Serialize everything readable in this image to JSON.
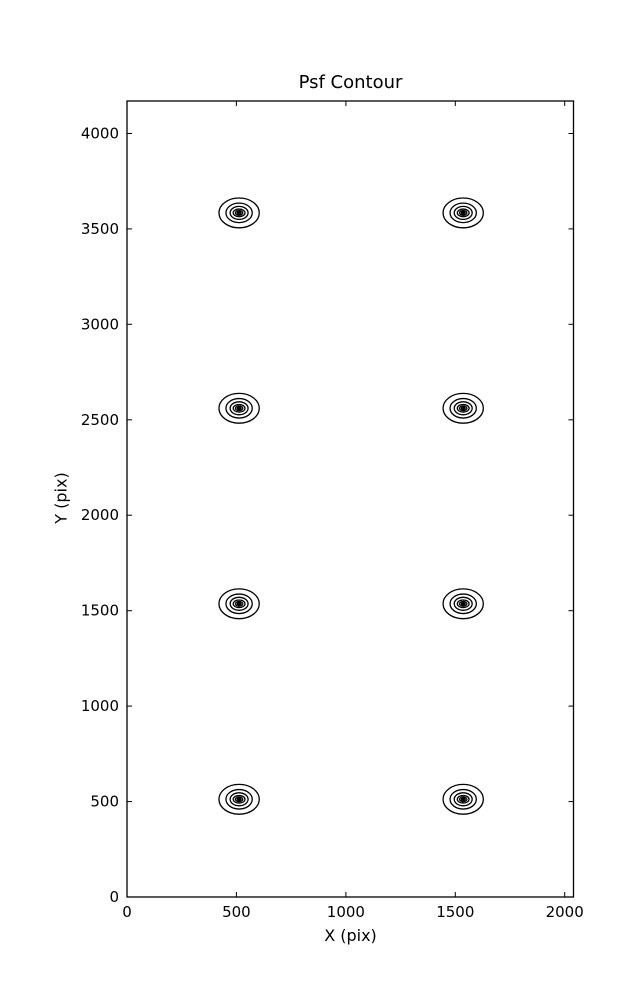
{
  "figure": {
    "background_color": "#ffffff",
    "line_color": "#000000"
  },
  "chart_data": {
    "type": "contour",
    "title": "Psf Contour",
    "xlabel": "X (pix)",
    "ylabel": "Y (pix)",
    "xlim": [
      0,
      2040
    ],
    "ylim": [
      0,
      4170
    ],
    "xticks": [
      0,
      500,
      1000,
      1500,
      2000
    ],
    "yticks": [
      0,
      500,
      1000,
      1500,
      2000,
      2500,
      3000,
      3500,
      4000
    ],
    "grid": false,
    "legend": null,
    "tick_direction": "in",
    "contour_color": "#000000",
    "psf_centers": [
      {
        "x": 512,
        "y": 512
      },
      {
        "x": 1536,
        "y": 512
      },
      {
        "x": 512,
        "y": 1536
      },
      {
        "x": 1536,
        "y": 1536
      },
      {
        "x": 512,
        "y": 2560
      },
      {
        "x": 1536,
        "y": 2560
      },
      {
        "x": 512,
        "y": 3584
      },
      {
        "x": 1536,
        "y": 3584
      }
    ],
    "contour_ring_semi_axes": [
      {
        "rx": 92,
        "ry": 78
      },
      {
        "rx": 60,
        "ry": 51
      },
      {
        "rx": 41,
        "ry": 34
      },
      {
        "rx": 27,
        "ry": 20
      },
      {
        "rx": 17,
        "ry": 12.5
      },
      {
        "rx": 9,
        "ry": 7
      },
      {
        "rx": 4,
        "ry": 2.5
      }
    ]
  }
}
